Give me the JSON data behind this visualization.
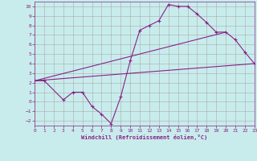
{
  "xlabel": "Windchill (Refroidissement éolien,°C)",
  "background_color": "#c8ecec",
  "grid_color": "#aaaaaa",
  "line_color": "#882288",
  "xlim": [
    0,
    23
  ],
  "ylim": [
    -2.5,
    10.5
  ],
  "xticks": [
    0,
    1,
    2,
    3,
    4,
    5,
    6,
    7,
    8,
    9,
    10,
    11,
    12,
    13,
    14,
    15,
    16,
    17,
    18,
    19,
    20,
    21,
    22,
    23
  ],
  "yticks": [
    -2,
    -1,
    0,
    1,
    2,
    3,
    4,
    5,
    6,
    7,
    8,
    9,
    10
  ],
  "line1_x": [
    0,
    1,
    3,
    4,
    5,
    6,
    7,
    8,
    9,
    10,
    11,
    12,
    13,
    14,
    15,
    16,
    17,
    18,
    19,
    20,
    21,
    22,
    23
  ],
  "line1_y": [
    2.2,
    2.2,
    0.2,
    1.0,
    1.0,
    -0.5,
    -1.3,
    -2.3,
    0.5,
    4.3,
    7.5,
    8.0,
    8.5,
    10.2,
    10.0,
    10.0,
    9.2,
    8.3,
    7.3,
    7.3,
    6.5,
    5.2,
    4.0
  ],
  "line2_x": [
    0,
    23
  ],
  "line2_y": [
    2.2,
    4.0
  ],
  "line3_x": [
    0,
    20
  ],
  "line3_y": [
    2.2,
    7.3
  ]
}
